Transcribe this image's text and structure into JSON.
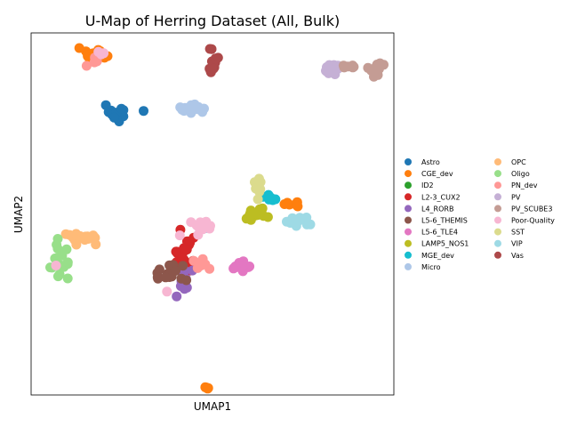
{
  "chart_data": {
    "type": "scatter",
    "title": "U-Map of Herring Dataset (All, Bulk)",
    "xlabel": "UMAP1",
    "ylabel": "UMAP2",
    "ticks": "none",
    "grid": false,
    "legend_position": "right, outside plot, two columns",
    "series": [
      {
        "name": "Astro",
        "color": "#1f77b4",
        "clusters": [
          {
            "x": 0.24,
            "y": 0.78,
            "sx": 0.018,
            "sy": 0.012,
            "n": 22
          }
        ]
      },
      {
        "name": "CGE_dev",
        "color": "#ff7f0e",
        "clusters": [
          {
            "x": 0.17,
            "y": 0.935,
            "sx": 0.018,
            "sy": 0.008,
            "n": 18
          },
          {
            "x": 0.72,
            "y": 0.53,
            "sx": 0.02,
            "sy": 0.006,
            "n": 8
          },
          {
            "x": 0.485,
            "y": 0.02,
            "sx": 0.006,
            "sy": 0.004,
            "n": 4
          }
        ]
      },
      {
        "name": "ID2",
        "color": "#2ca02c",
        "clusters": []
      },
      {
        "name": "L2-3_CUX2",
        "color": "#d62728",
        "clusters": [
          {
            "x": 0.42,
            "y": 0.39,
            "sx": 0.016,
            "sy": 0.02,
            "n": 18
          },
          {
            "x": 0.44,
            "y": 0.35,
            "sx": 0.01,
            "sy": 0.008,
            "n": 6
          }
        ]
      },
      {
        "name": "L4_RORB",
        "color": "#9467bd",
        "clusters": [
          {
            "x": 0.42,
            "y": 0.31,
            "sx": 0.01,
            "sy": 0.025,
            "n": 16
          }
        ]
      },
      {
        "name": "L5-6_THEMIS",
        "color": "#8c564b",
        "clusters": [
          {
            "x": 0.37,
            "y": 0.335,
            "sx": 0.025,
            "sy": 0.012,
            "n": 18
          }
        ]
      },
      {
        "name": "L5-6_TLE4",
        "color": "#e377c2",
        "clusters": [
          {
            "x": 0.58,
            "y": 0.355,
            "sx": 0.018,
            "sy": 0.008,
            "n": 16
          }
        ]
      },
      {
        "name": "LAMP5_NOS1",
        "color": "#bcbd22",
        "clusters": [
          {
            "x": 0.62,
            "y": 0.5,
            "sx": 0.018,
            "sy": 0.01,
            "n": 18
          }
        ]
      },
      {
        "name": "MGE_dev",
        "color": "#17becf",
        "clusters": [
          {
            "x": 0.665,
            "y": 0.545,
            "sx": 0.012,
            "sy": 0.006,
            "n": 6
          },
          {
            "x": 0.48,
            "y": 0.465,
            "sx": 0.003,
            "sy": 0.003,
            "n": 2
          }
        ]
      },
      {
        "name": "Micro",
        "color": "#aec7e8",
        "clusters": [
          {
            "x": 0.445,
            "y": 0.79,
            "sx": 0.022,
            "sy": 0.007,
            "n": 18
          }
        ]
      },
      {
        "name": "OPC",
        "color": "#ffbb78",
        "clusters": [
          {
            "x": 0.14,
            "y": 0.435,
            "sx": 0.022,
            "sy": 0.008,
            "n": 20
          }
        ]
      },
      {
        "name": "Oligo",
        "color": "#98df8a",
        "clusters": [
          {
            "x": 0.08,
            "y": 0.37,
            "sx": 0.012,
            "sy": 0.025,
            "n": 18
          }
        ]
      },
      {
        "name": "PN_dev",
        "color": "#ff9896",
        "clusters": [
          {
            "x": 0.18,
            "y": 0.93,
            "sx": 0.01,
            "sy": 0.006,
            "n": 6
          },
          {
            "x": 0.47,
            "y": 0.36,
            "sx": 0.012,
            "sy": 0.005,
            "n": 8
          }
        ]
      },
      {
        "name": "PV",
        "color": "#c5b0d5",
        "clusters": [
          {
            "x": 0.83,
            "y": 0.905,
            "sx": 0.012,
            "sy": 0.008,
            "n": 14
          }
        ]
      },
      {
        "name": "PV_SCUBE3",
        "color": "#c49c94",
        "clusters": [
          {
            "x": 0.95,
            "y": 0.9,
            "sx": 0.012,
            "sy": 0.01,
            "n": 14
          },
          {
            "x": 0.88,
            "y": 0.905,
            "sx": 0.015,
            "sy": 0.004,
            "n": 6
          }
        ]
      },
      {
        "name": "Poor-Quality",
        "color": "#f7b6d2",
        "clusters": [
          {
            "x": 0.47,
            "y": 0.465,
            "sx": 0.014,
            "sy": 0.01,
            "n": 14
          },
          {
            "x": 0.375,
            "y": 0.29,
            "sx": 0.003,
            "sy": 0.003,
            "n": 1
          },
          {
            "x": 0.065,
            "y": 0.355,
            "sx": 0.003,
            "sy": 0.003,
            "n": 1
          },
          {
            "x": 0.195,
            "y": 0.94,
            "sx": 0.005,
            "sy": 0.004,
            "n": 3
          }
        ]
      },
      {
        "name": "SST",
        "color": "#dbdb8d",
        "clusters": [
          {
            "x": 0.63,
            "y": 0.58,
            "sx": 0.008,
            "sy": 0.015,
            "n": 10
          }
        ]
      },
      {
        "name": "VIP",
        "color": "#9edae5",
        "clusters": [
          {
            "x": 0.74,
            "y": 0.48,
            "sx": 0.018,
            "sy": 0.008,
            "n": 14
          }
        ]
      },
      {
        "name": "Vas",
        "color": "#ad494a",
        "clusters": [
          {
            "x": 0.5,
            "y": 0.92,
            "sx": 0.008,
            "sy": 0.018,
            "n": 14
          }
        ]
      }
    ]
  }
}
